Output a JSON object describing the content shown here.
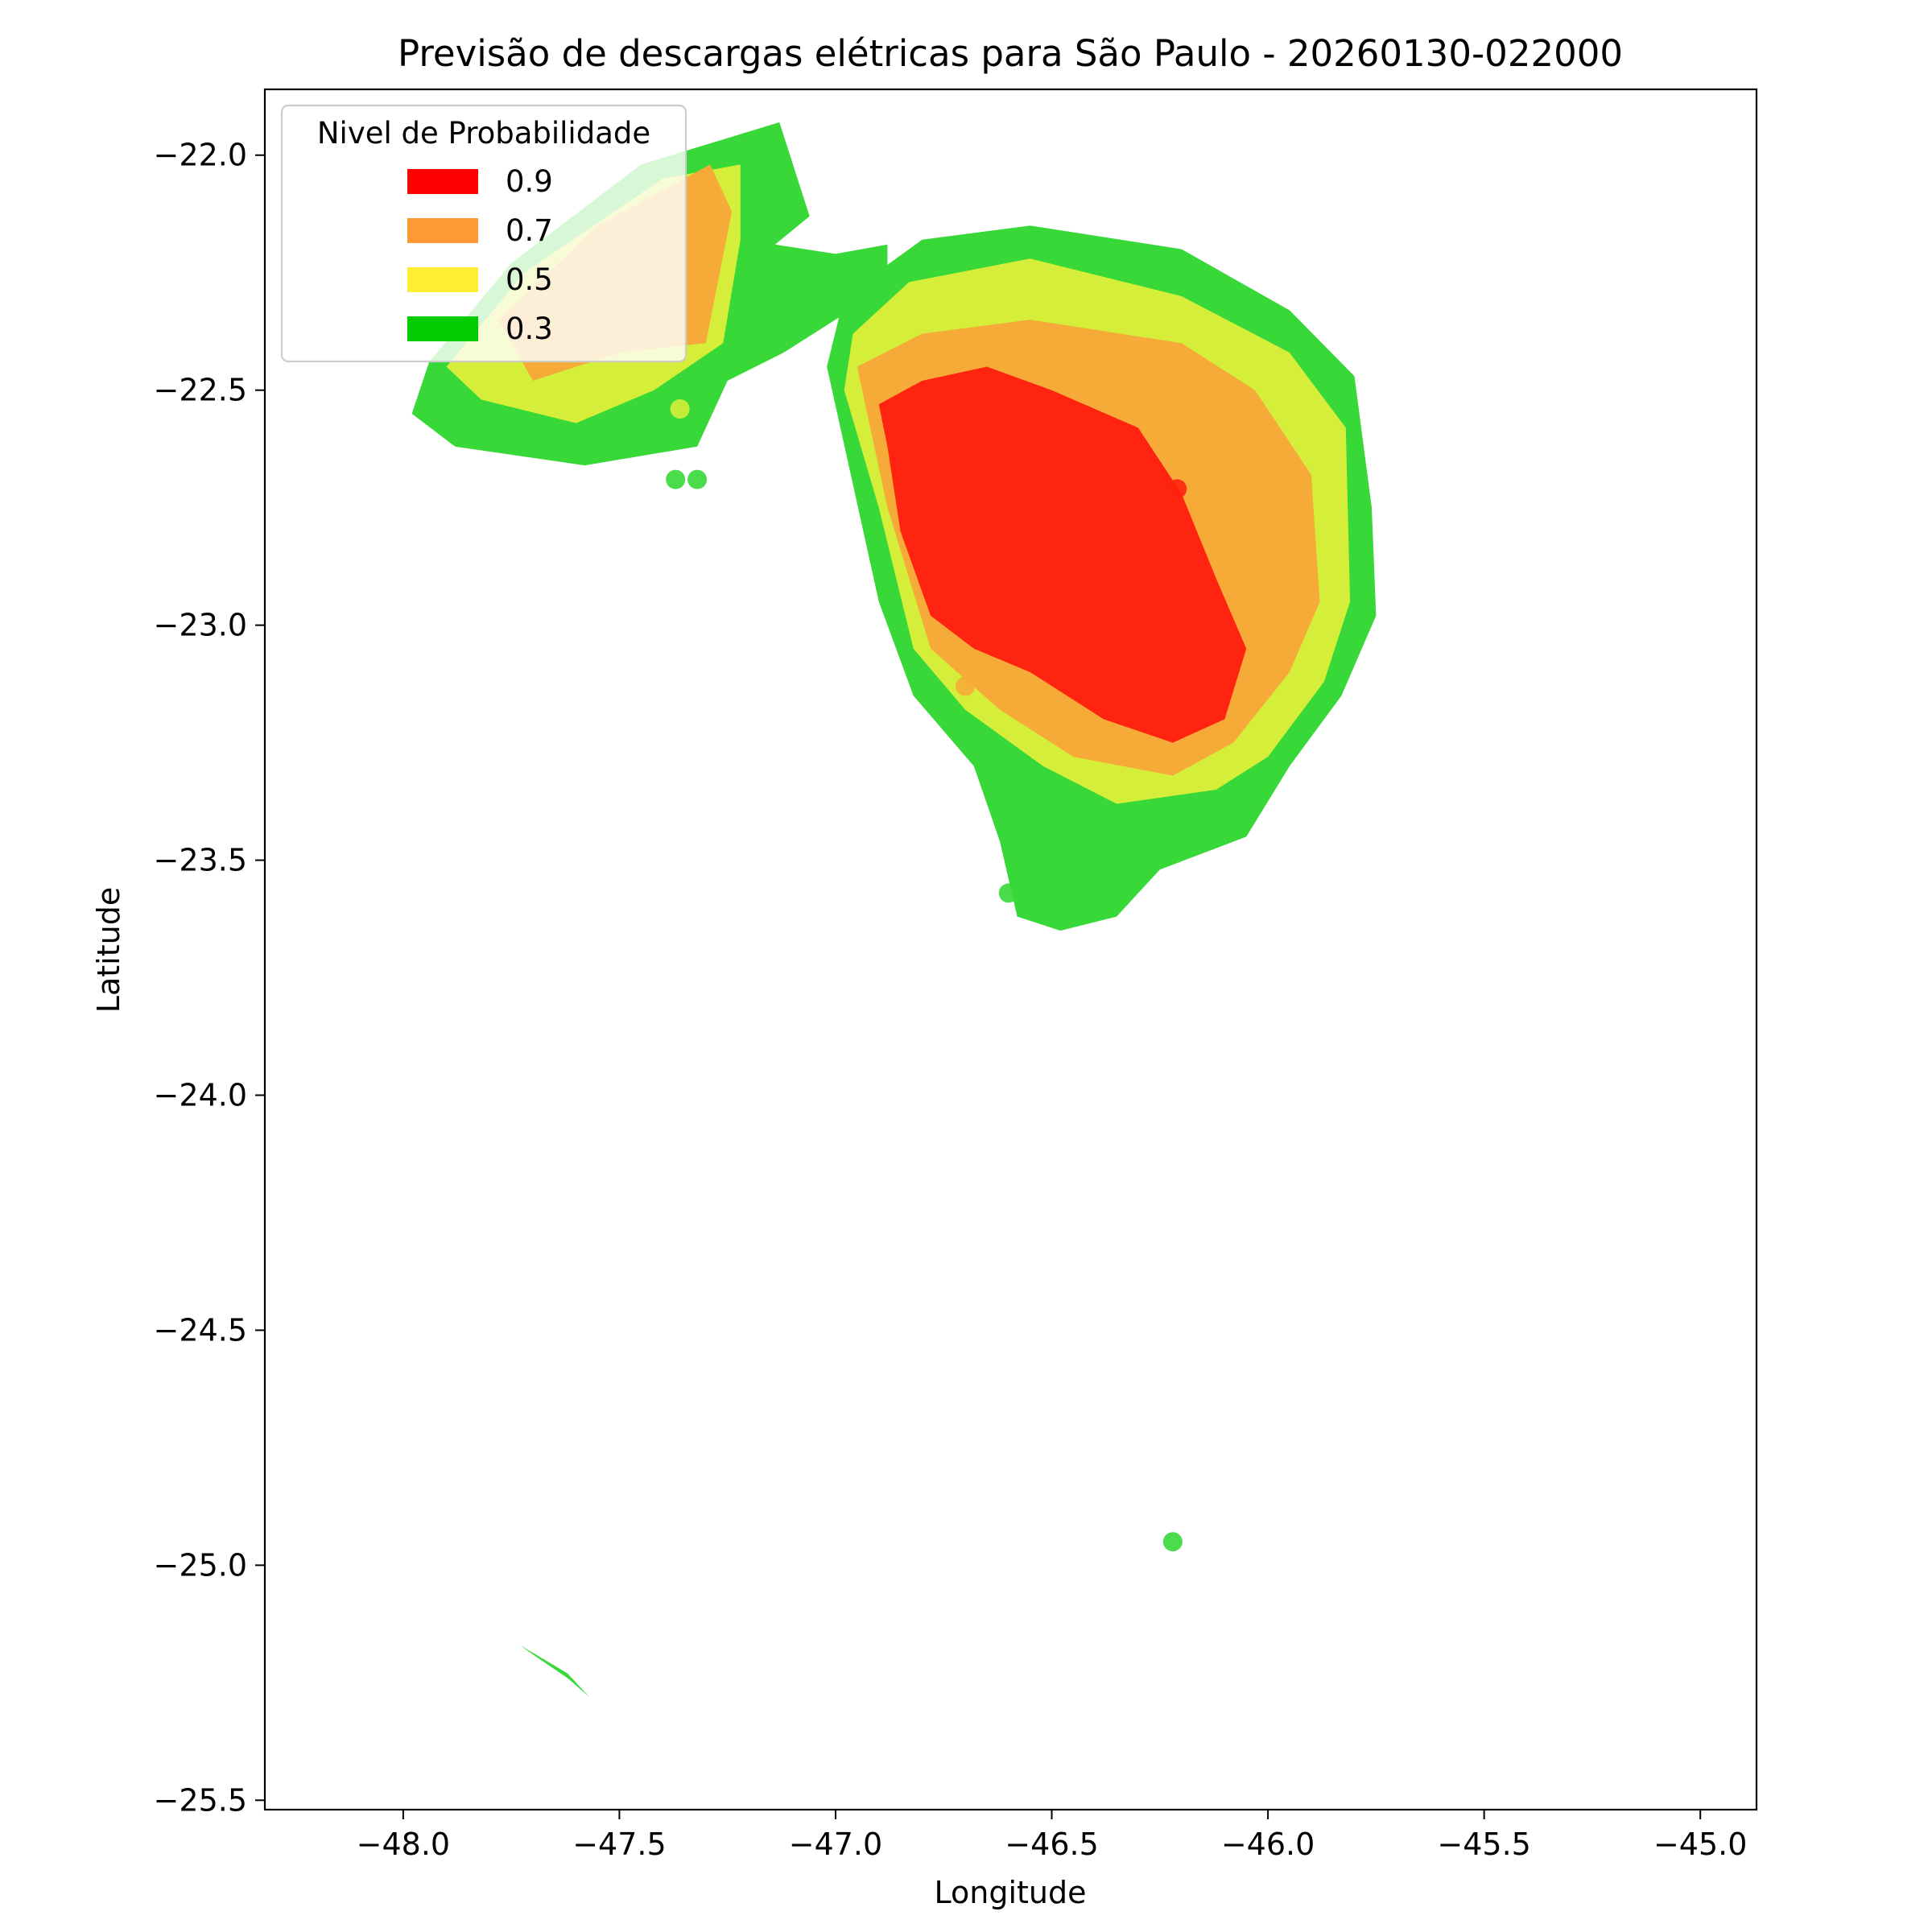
{
  "chart_data": {
    "type": "heatmap",
    "title": "Previsão de descargas elétricas para São Paulo - 20260130-022000",
    "xlabel": "Longitude",
    "ylabel": "Latitude",
    "xlim": [
      -48.32,
      -44.87
    ],
    "ylim": [
      -25.52,
      -21.86
    ],
    "xticks": [
      -48.0,
      -47.5,
      -47.0,
      -46.5,
      -46.0,
      -45.5,
      -45.0
    ],
    "xtick_labels": [
      "−48.0",
      "−47.5",
      "−47.0",
      "−46.5",
      "−46.0",
      "−45.5",
      "−45.0"
    ],
    "yticks": [
      -22.0,
      -22.5,
      -23.0,
      -23.5,
      -24.0,
      -24.5,
      -25.0,
      -25.5
    ],
    "ytick_labels": [
      "−22.0",
      "−22.5",
      "−23.0",
      "−23.5",
      "−24.0",
      "−24.5",
      "−25.0",
      "−25.5"
    ],
    "grid": false,
    "legend": {
      "title": "Nivel de Probabilidade",
      "placement": "top-left",
      "entries": [
        {
          "label": "0.9",
          "color": "#ff0000"
        },
        {
          "label": "0.7",
          "color": "#ff9933"
        },
        {
          "label": "0.5",
          "color": "#ffee33"
        },
        {
          "label": "0.3",
          "color": "#00cc00"
        }
      ]
    },
    "fill_colors": {
      "0.3": "#37d837",
      "0.5": "#d5ee3a",
      "0.7": "#f6ab38",
      "0.9": "#ff2410"
    },
    "regions": [
      {
        "level": "0.3",
        "name": "NW cluster",
        "points": [
          [
            -47.94,
            -22.44
          ],
          [
            -47.75,
            -22.23
          ],
          [
            -47.45,
            -22.02
          ],
          [
            -47.13,
            -21.93
          ],
          [
            -47.06,
            -22.13
          ],
          [
            -47.14,
            -22.19
          ],
          [
            -47.0,
            -22.21
          ],
          [
            -46.88,
            -22.19
          ],
          [
            -46.88,
            -22.28
          ],
          [
            -47.12,
            -22.42
          ],
          [
            -47.25,
            -22.48
          ],
          [
            -47.32,
            -22.62
          ],
          [
            -47.58,
            -22.66
          ],
          [
            -47.88,
            -22.62
          ],
          [
            -47.98,
            -22.55
          ]
        ]
      },
      {
        "level": "0.5",
        "name": "NW cluster",
        "points": [
          [
            -47.9,
            -22.45
          ],
          [
            -47.72,
            -22.25
          ],
          [
            -47.4,
            -22.05
          ],
          [
            -47.22,
            -22.02
          ],
          [
            -47.22,
            -22.18
          ],
          [
            -47.26,
            -22.4
          ],
          [
            -47.42,
            -22.5
          ],
          [
            -47.6,
            -22.57
          ],
          [
            -47.82,
            -22.52
          ]
        ]
      },
      {
        "level": "0.7",
        "name": "NW cluster",
        "points": [
          [
            -47.78,
            -22.35
          ],
          [
            -47.55,
            -22.15
          ],
          [
            -47.29,
            -22.02
          ],
          [
            -47.24,
            -22.12
          ],
          [
            -47.3,
            -22.4
          ],
          [
            -47.5,
            -22.42
          ],
          [
            -47.7,
            -22.48
          ]
        ]
      },
      {
        "level": "0.3",
        "name": "main cell",
        "points": [
          [
            -46.98,
            -22.3
          ],
          [
            -46.8,
            -22.18
          ],
          [
            -46.55,
            -22.15
          ],
          [
            -46.2,
            -22.2
          ],
          [
            -45.95,
            -22.33
          ],
          [
            -45.8,
            -22.47
          ],
          [
            -45.76,
            -22.75
          ],
          [
            -45.75,
            -22.98
          ],
          [
            -45.83,
            -23.15
          ],
          [
            -45.95,
            -23.3
          ],
          [
            -46.05,
            -23.45
          ],
          [
            -46.25,
            -23.52
          ],
          [
            -46.35,
            -23.62
          ],
          [
            -46.48,
            -23.65
          ],
          [
            -46.58,
            -23.62
          ],
          [
            -46.62,
            -23.46
          ],
          [
            -46.68,
            -23.3
          ],
          [
            -46.82,
            -23.15
          ],
          [
            -46.9,
            -22.95
          ],
          [
            -46.96,
            -22.7
          ],
          [
            -47.02,
            -22.45
          ]
        ]
      },
      {
        "level": "0.5",
        "name": "main cell",
        "points": [
          [
            -46.96,
            -22.38
          ],
          [
            -46.83,
            -22.27
          ],
          [
            -46.55,
            -22.22
          ],
          [
            -46.2,
            -22.3
          ],
          [
            -45.95,
            -22.42
          ],
          [
            -45.82,
            -22.58
          ],
          [
            -45.81,
            -22.95
          ],
          [
            -45.87,
            -23.12
          ],
          [
            -46.0,
            -23.28
          ],
          [
            -46.12,
            -23.35
          ],
          [
            -46.35,
            -23.38
          ],
          [
            -46.52,
            -23.3
          ],
          [
            -46.7,
            -23.18
          ],
          [
            -46.82,
            -23.05
          ],
          [
            -46.9,
            -22.75
          ],
          [
            -46.98,
            -22.5
          ]
        ]
      },
      {
        "level": "0.7",
        "name": "main cell",
        "points": [
          [
            -46.95,
            -22.45
          ],
          [
            -46.8,
            -22.38
          ],
          [
            -46.55,
            -22.35
          ],
          [
            -46.2,
            -22.4
          ],
          [
            -46.03,
            -22.5
          ],
          [
            -45.9,
            -22.68
          ],
          [
            -45.88,
            -22.95
          ],
          [
            -45.95,
            -23.1
          ],
          [
            -46.08,
            -23.25
          ],
          [
            -46.22,
            -23.32
          ],
          [
            -46.45,
            -23.28
          ],
          [
            -46.62,
            -23.18
          ],
          [
            -46.78,
            -23.05
          ],
          [
            -46.88,
            -22.75
          ]
        ]
      },
      {
        "level": "0.9",
        "name": "main cell",
        "points": [
          [
            -46.9,
            -22.53
          ],
          [
            -46.8,
            -22.48
          ],
          [
            -46.65,
            -22.45
          ],
          [
            -46.5,
            -22.5
          ],
          [
            -46.3,
            -22.58
          ],
          [
            -46.2,
            -22.72
          ],
          [
            -46.12,
            -22.9
          ],
          [
            -46.05,
            -23.05
          ],
          [
            -46.1,
            -23.2
          ],
          [
            -46.22,
            -23.25
          ],
          [
            -46.38,
            -23.2
          ],
          [
            -46.55,
            -23.1
          ],
          [
            -46.68,
            -23.05
          ],
          [
            -46.78,
            -22.98
          ],
          [
            -46.85,
            -22.8
          ],
          [
            -46.88,
            -22.62
          ]
        ]
      },
      {
        "level": "0.3",
        "name": "southern sliver",
        "points": [
          [
            -47.73,
            -25.17
          ],
          [
            -47.62,
            -25.23
          ],
          [
            -47.57,
            -25.28
          ],
          [
            -47.62,
            -25.24
          ],
          [
            -47.7,
            -25.19
          ]
        ]
      }
    ],
    "points": [
      {
        "lon": -47.36,
        "lat": -22.54,
        "level": "0.5"
      },
      {
        "lon": -47.37,
        "lat": -22.69,
        "level": "0.3"
      },
      {
        "lon": -47.32,
        "lat": -22.69,
        "level": "0.3"
      },
      {
        "lon": -46.21,
        "lat": -22.71,
        "level": "0.9"
      },
      {
        "lon": -46.7,
        "lat": -23.13,
        "level": "0.7"
      },
      {
        "lon": -46.55,
        "lat": -23.16,
        "level": "0.7"
      },
      {
        "lon": -46.5,
        "lat": -23.18,
        "level": "0.7"
      },
      {
        "lon": -46.6,
        "lat": -23.57,
        "level": "0.3"
      },
      {
        "lon": -46.22,
        "lat": -24.95,
        "level": "0.3"
      }
    ]
  }
}
